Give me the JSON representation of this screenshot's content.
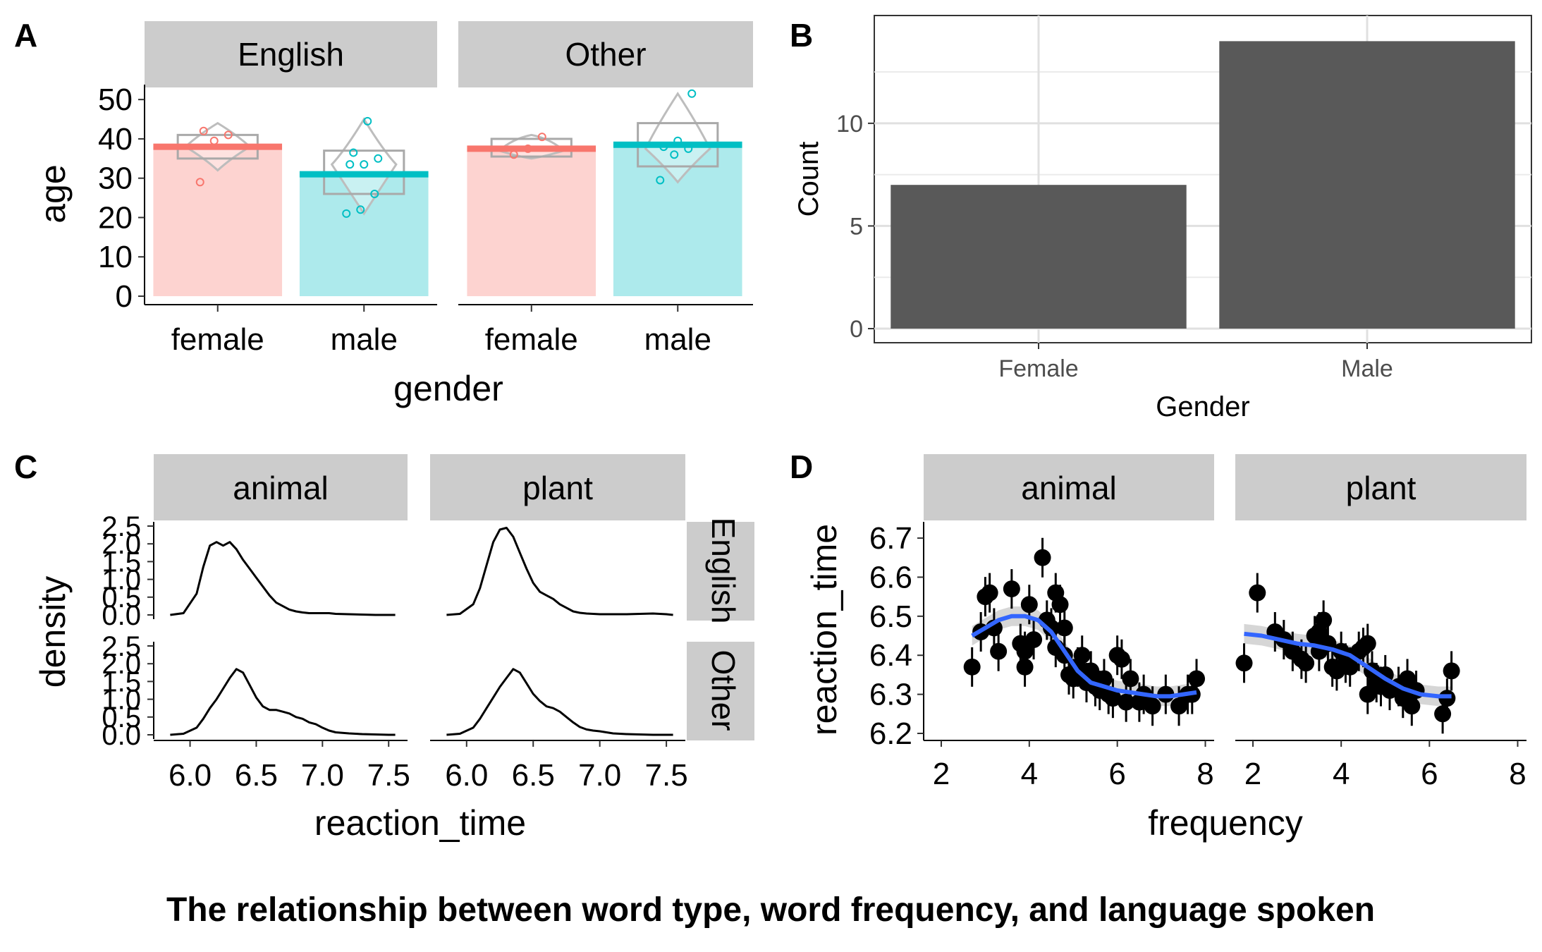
{
  "figure_title": "The relationship between word type, word frequency, and language spoken",
  "panel_labels": [
    "A",
    "B",
    "C",
    "D"
  ],
  "chart_data": [
    {
      "panel": "A",
      "type": "bar",
      "xlabel": "gender",
      "ylabel": "age",
      "ylim": [
        0,
        52
      ],
      "yticks": [
        0,
        10,
        20,
        30,
        40,
        50
      ],
      "facets": [
        "English",
        "Other"
      ],
      "categories": [
        "female",
        "male"
      ],
      "colors": {
        "female": "#F8766D",
        "male": "#00BFC4"
      },
      "series": [
        {
          "facet": "English",
          "gender": "female",
          "mean": 38.0,
          "box": [
            32,
            35,
            38,
            41,
            44
          ],
          "points": [
            29,
            39.5,
            41,
            42
          ]
        },
        {
          "facet": "English",
          "gender": "male",
          "mean": 31.0,
          "box": [
            21,
            26,
            33.5,
            37,
            45
          ],
          "points": [
            21,
            22,
            26,
            33.5,
            33.5,
            35,
            36.5,
            44.5
          ]
        },
        {
          "facet": "Other",
          "gender": "female",
          "mean": 37.5,
          "box": [
            35,
            35.5,
            37,
            40,
            41
          ],
          "points": [
            36,
            37.5,
            40.5
          ]
        },
        {
          "facet": "Other",
          "gender": "male",
          "mean": 38.5,
          "box": [
            29,
            33,
            37.5,
            44,
            51.5
          ],
          "points": [
            29.5,
            36,
            37.5,
            38,
            39.5,
            51.5
          ]
        }
      ]
    },
    {
      "panel": "B",
      "type": "bar",
      "xlabel": "Gender",
      "ylabel": "Count",
      "categories": [
        "Female",
        "Male"
      ],
      "values": [
        7,
        14
      ],
      "ylim": [
        0,
        15
      ],
      "yticks": [
        0,
        5,
        10
      ],
      "grid": true
    },
    {
      "panel": "C",
      "type": "line",
      "xlabel": "reaction_time",
      "ylabel": "density",
      "xlim": [
        5.8,
        7.6
      ],
      "xticks": [
        6.0,
        6.5,
        7.0,
        7.5
      ],
      "ylim": [
        0,
        2.5
      ],
      "yticks": [
        0.0,
        0.5,
        1.0,
        1.5,
        2.0,
        2.5
      ],
      "col_facets": [
        "animal",
        "plant"
      ],
      "row_facets": [
        "English",
        "Other"
      ],
      "x": [
        5.85,
        5.95,
        6.05,
        6.1,
        6.15,
        6.2,
        6.25,
        6.3,
        6.35,
        6.4,
        6.45,
        6.5,
        6.55,
        6.6,
        6.65,
        6.7,
        6.75,
        6.8,
        6.85,
        6.9,
        6.95,
        7.0,
        7.05,
        7.1,
        7.2,
        7.3,
        7.4,
        7.5,
        7.55
      ],
      "series": [
        {
          "row": "English",
          "col": "animal",
          "values": [
            0.0,
            0.05,
            0.6,
            1.35,
            1.95,
            2.05,
            1.95,
            2.05,
            1.85,
            1.55,
            1.3,
            1.05,
            0.8,
            0.55,
            0.35,
            0.25,
            0.15,
            0.1,
            0.07,
            0.05,
            0.05,
            0.05,
            0.05,
            0.03,
            0.02,
            0.01,
            0.0,
            0.0,
            0.0
          ]
        },
        {
          "row": "English",
          "col": "plant",
          "values": [
            0.0,
            0.03,
            0.3,
            0.75,
            1.4,
            2.05,
            2.4,
            2.45,
            2.2,
            1.75,
            1.3,
            0.9,
            0.65,
            0.55,
            0.45,
            0.3,
            0.2,
            0.1,
            0.06,
            0.04,
            0.03,
            0.02,
            0.02,
            0.02,
            0.02,
            0.03,
            0.04,
            0.02,
            0.0
          ]
        },
        {
          "row": "Other",
          "col": "animal",
          "values": [
            0.0,
            0.03,
            0.2,
            0.45,
            0.75,
            1.0,
            1.3,
            1.6,
            1.85,
            1.75,
            1.4,
            1.05,
            0.8,
            0.7,
            0.7,
            0.65,
            0.6,
            0.5,
            0.45,
            0.35,
            0.3,
            0.2,
            0.12,
            0.07,
            0.04,
            0.02,
            0.01,
            0.0,
            0.0
          ]
        },
        {
          "row": "Other",
          "col": "plant",
          "values": [
            0.0,
            0.03,
            0.2,
            0.45,
            0.75,
            1.05,
            1.35,
            1.6,
            1.85,
            1.75,
            1.45,
            1.15,
            0.95,
            0.8,
            0.75,
            0.65,
            0.5,
            0.35,
            0.22,
            0.15,
            0.12,
            0.1,
            0.07,
            0.04,
            0.02,
            0.01,
            0.0,
            0.0,
            0.0
          ]
        }
      ]
    },
    {
      "panel": "D",
      "type": "scatter",
      "xlabel": "frequency",
      "ylabel": "reaction_time",
      "xlim": [
        1.6,
        8.2
      ],
      "xticks": [
        2,
        4,
        6,
        8
      ],
      "ylim": [
        6.2,
        6.72
      ],
      "yticks": [
        6.2,
        6.3,
        6.4,
        6.5,
        6.6,
        6.7
      ],
      "facets": [
        "animal",
        "plant"
      ],
      "point_color": "#000000",
      "smooth_color": "#3366FF",
      "series": [
        {
          "facet": "animal",
          "points": [
            [
              2.7,
              6.37
            ],
            [
              2.9,
              6.46
            ],
            [
              3.0,
              6.55
            ],
            [
              3.1,
              6.56
            ],
            [
              3.2,
              6.47
            ],
            [
              3.3,
              6.41
            ],
            [
              3.6,
              6.57
            ],
            [
              3.8,
              6.43
            ],
            [
              3.9,
              6.41
            ],
            [
              3.9,
              6.37
            ],
            [
              4.0,
              6.53
            ],
            [
              4.1,
              6.44
            ],
            [
              4.3,
              6.65
            ],
            [
              4.4,
              6.49
            ],
            [
              4.5,
              6.47
            ],
            [
              4.6,
              6.56
            ],
            [
              4.6,
              6.42
            ],
            [
              4.7,
              6.53
            ],
            [
              4.8,
              6.47
            ],
            [
              4.8,
              6.4
            ],
            [
              4.9,
              6.35
            ],
            [
              5.0,
              6.34
            ],
            [
              5.1,
              6.37
            ],
            [
              5.2,
              6.4
            ],
            [
              5.3,
              6.33
            ],
            [
              5.4,
              6.36
            ],
            [
              5.5,
              6.32
            ],
            [
              5.6,
              6.31
            ],
            [
              5.7,
              6.34
            ],
            [
              5.8,
              6.3
            ],
            [
              5.9,
              6.29
            ],
            [
              6.0,
              6.4
            ],
            [
              6.1,
              6.39
            ],
            [
              6.2,
              6.28
            ],
            [
              6.3,
              6.34
            ],
            [
              6.5,
              6.28
            ],
            [
              6.6,
              6.3
            ],
            [
              6.8,
              6.27
            ],
            [
              7.1,
              6.3
            ],
            [
              7.4,
              6.27
            ],
            [
              7.6,
              6.3
            ],
            [
              7.7,
              6.3
            ],
            [
              7.8,
              6.34
            ]
          ],
          "smooth_x": [
            2.7,
            3.0,
            3.3,
            3.6,
            3.9,
            4.2,
            4.5,
            4.8,
            5.1,
            5.4,
            5.7,
            6.0,
            6.3,
            6.6,
            6.9,
            7.2,
            7.5,
            7.8
          ],
          "smooth_y": [
            6.45,
            6.47,
            6.49,
            6.5,
            6.5,
            6.49,
            6.46,
            6.41,
            6.36,
            6.33,
            6.32,
            6.31,
            6.305,
            6.3,
            6.295,
            6.295,
            6.3,
            6.305
          ],
          "band": 0.025
        },
        {
          "facet": "plant",
          "points": [
            [
              1.8,
              6.38
            ],
            [
              2.1,
              6.56
            ],
            [
              2.5,
              6.46
            ],
            [
              2.7,
              6.44
            ],
            [
              2.9,
              6.41
            ],
            [
              3.1,
              6.39
            ],
            [
              3.2,
              6.38
            ],
            [
              3.4,
              6.45
            ],
            [
              3.5,
              6.41
            ],
            [
              3.5,
              6.46
            ],
            [
              3.6,
              6.49
            ],
            [
              3.7,
              6.43
            ],
            [
              3.8,
              6.37
            ],
            [
              3.9,
              6.36
            ],
            [
              4.0,
              6.41
            ],
            [
              4.1,
              6.38
            ],
            [
              4.2,
              6.37
            ],
            [
              4.4,
              6.41
            ],
            [
              4.5,
              6.42
            ],
            [
              4.6,
              6.43
            ],
            [
              4.6,
              6.3
            ],
            [
              4.7,
              6.36
            ],
            [
              4.8,
              6.33
            ],
            [
              4.9,
              6.32
            ],
            [
              5.0,
              6.35
            ],
            [
              5.1,
              6.31
            ],
            [
              5.3,
              6.32
            ],
            [
              5.4,
              6.29
            ],
            [
              5.5,
              6.34
            ],
            [
              5.6,
              6.27
            ],
            [
              5.7,
              6.31
            ],
            [
              6.3,
              6.25
            ],
            [
              6.4,
              6.29
            ],
            [
              6.5,
              6.36
            ]
          ],
          "smooth_x": [
            1.8,
            2.2,
            2.6,
            3.0,
            3.4,
            3.8,
            4.2,
            4.6,
            5.0,
            5.4,
            5.8,
            6.2,
            6.5
          ],
          "smooth_y": [
            6.455,
            6.45,
            6.44,
            6.43,
            6.425,
            6.415,
            6.4,
            6.37,
            6.34,
            6.315,
            6.3,
            6.295,
            6.295
          ],
          "band": 0.025
        }
      ]
    }
  ]
}
